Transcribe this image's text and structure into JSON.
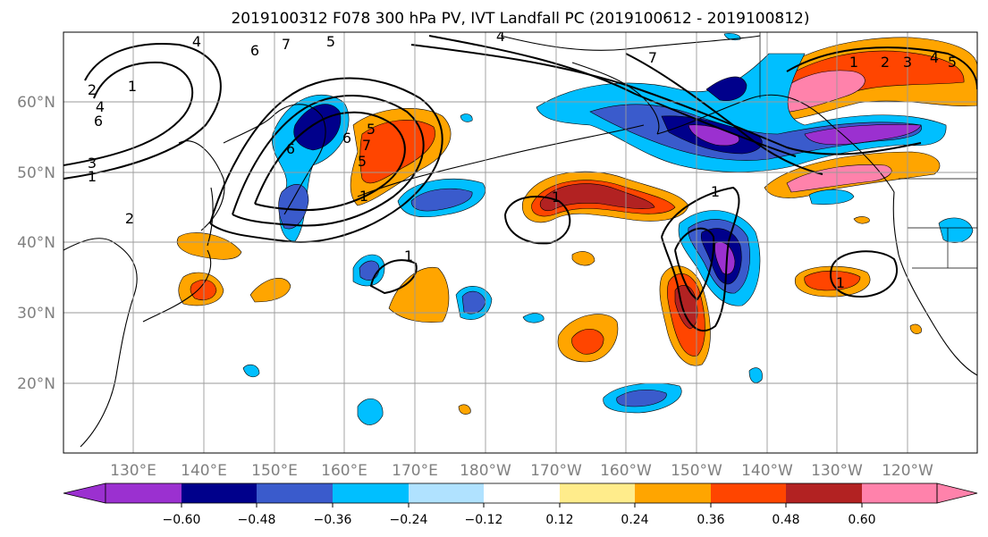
{
  "title": "2019100312 F078 300 hPa PV, IVT Landfall PC (2019100612 - 2019100812)",
  "map": {
    "lon_ticks": [
      "130°E",
      "140°E",
      "150°E",
      "160°E",
      "170°E",
      "180°W",
      "170°W",
      "160°W",
      "150°W",
      "140°W",
      "130°W",
      "120°W"
    ],
    "lat_ticks": [
      "60°N",
      "50°N",
      "40°N",
      "30°N",
      "20°N"
    ],
    "grid": true
  },
  "colorbar": {
    "ticks": [
      "−0.60",
      "−0.48",
      "−0.36",
      "−0.24",
      "−0.12",
      "0.12",
      "0.24",
      "0.36",
      "0.48",
      "0.60"
    ],
    "colors": [
      "#9b30d0",
      "#00008b",
      "#3a5bcc",
      "#00bfff",
      "#b0e2ff",
      "#ffffff",
      "#ffec8b",
      "#ffa500",
      "#ff4500",
      "#b22222",
      "#ff82ab"
    ]
  },
  "contour_labels": [
    "4",
    "6",
    "7",
    "5",
    "4",
    "2",
    "1",
    "4",
    "6",
    "3",
    "1",
    "7",
    "5",
    "1",
    "1",
    "1",
    "1",
    "1",
    "6",
    "6",
    "5",
    "5",
    "4",
    "3",
    "2",
    "1",
    "7",
    "2"
  ],
  "colors": {
    "coast": "#000000",
    "grid": "#9a9a9a",
    "contour": "#000000"
  }
}
